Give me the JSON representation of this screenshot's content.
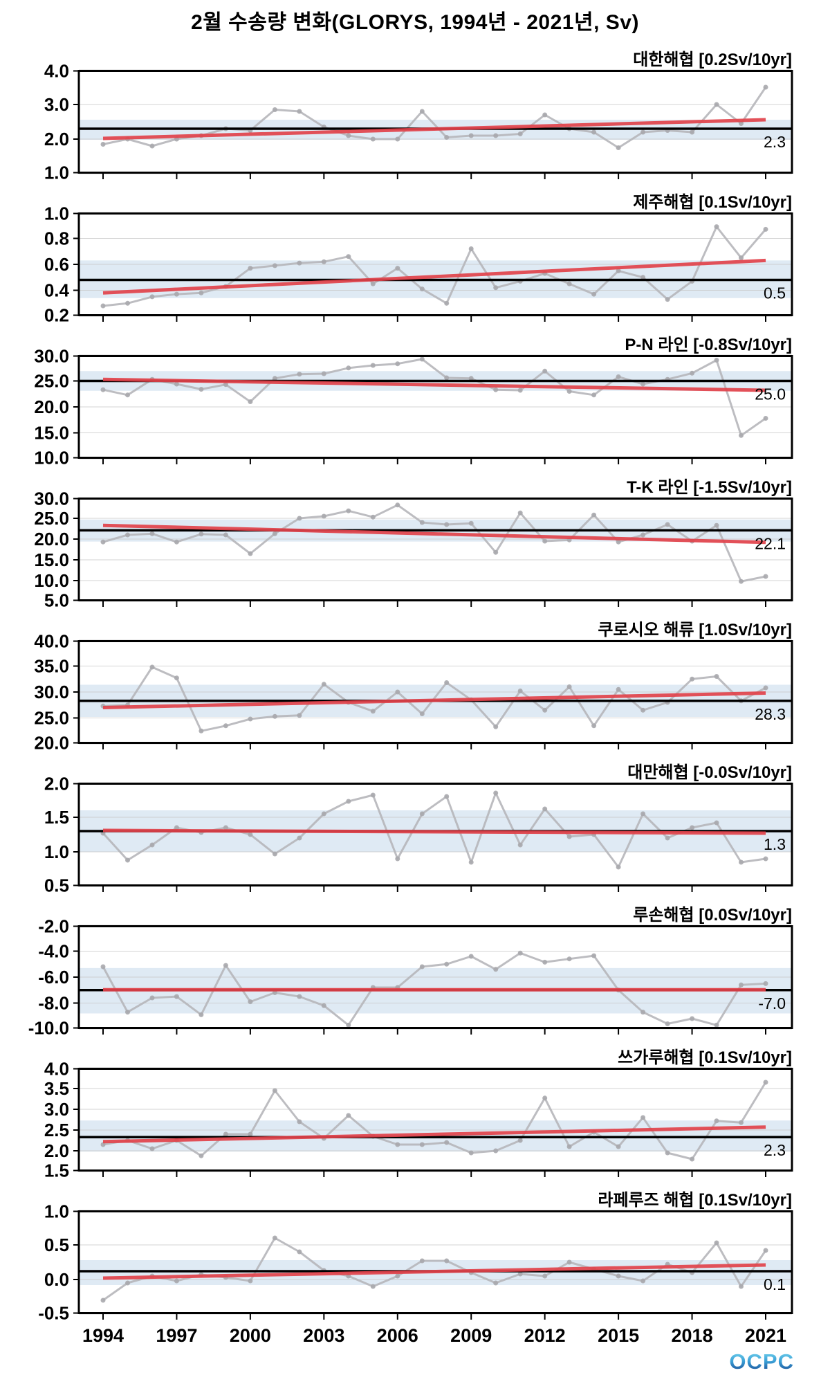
{
  "title": "2월 수송량 변화(GLORYS, 1994년 - 2021년, Sv)",
  "logo": {
    "text": "OCPC",
    "color_top": "#7edcf2",
    "color_bottom": "#123a86"
  },
  "colors": {
    "data_line": "#b6b6ba",
    "marker": "#a9a9ad",
    "trend": "#e2434b",
    "mean": "#000000",
    "band": "#d9e6f2",
    "grid": "#c9c9c9"
  },
  "years": [
    1994,
    1995,
    1996,
    1997,
    1998,
    1999,
    2000,
    2001,
    2002,
    2003,
    2004,
    2005,
    2006,
    2007,
    2008,
    2009,
    2010,
    2011,
    2012,
    2013,
    2014,
    2015,
    2016,
    2017,
    2018,
    2019,
    2020,
    2021
  ],
  "x_axis": {
    "tick_labels": [
      "1994",
      "1997",
      "2000",
      "2003",
      "2006",
      "2009",
      "2012",
      "2015",
      "2018",
      "2021"
    ],
    "tick_years": [
      1994,
      1997,
      2000,
      2003,
      2006,
      2009,
      2012,
      2015,
      2018,
      2021
    ]
  },
  "chart_data": [
    {
      "type": "line",
      "name": "korea-strait",
      "subtitle": "대한해협 [0.2Sv/10yr]",
      "trend_sv_per_10yr": 0.2,
      "mean": 2.3,
      "mean_label": "2.3",
      "ylim": [
        1.0,
        4.0
      ],
      "yticks": [
        4.0,
        3.0,
        2.0,
        1.0
      ],
      "ytick_labels": [
        "4.0",
        "3.0",
        "2.0",
        "1.0"
      ],
      "band": [
        1.98,
        2.56
      ],
      "trend_line": [
        2.02,
        2.56
      ],
      "values": [
        1.85,
        2.0,
        1.8,
        2.0,
        2.1,
        2.3,
        2.25,
        2.85,
        2.8,
        2.35,
        2.1,
        2.0,
        2.0,
        2.8,
        2.05,
        2.1,
        2.1,
        2.15,
        2.7,
        2.3,
        2.2,
        1.75,
        2.2,
        2.25,
        2.2,
        3.0,
        2.45,
        3.5
      ]
    },
    {
      "type": "line",
      "name": "jeju-strait",
      "subtitle": "제주해협 [0.1Sv/10yr]",
      "trend_sv_per_10yr": 0.1,
      "mean": 0.48,
      "mean_label": "0.5",
      "ylim": [
        0.2,
        1.0
      ],
      "yticks": [
        1.0,
        0.8,
        0.6,
        0.4,
        0.2
      ],
      "ytick_labels": [
        "1.0",
        "0.8",
        "0.6",
        "0.4",
        "0.2"
      ],
      "band": [
        0.34,
        0.63
      ],
      "trend_line": [
        0.38,
        0.63
      ],
      "values": [
        0.28,
        0.3,
        0.35,
        0.37,
        0.38,
        0.43,
        0.57,
        0.59,
        0.61,
        0.62,
        0.66,
        0.45,
        0.57,
        0.41,
        0.3,
        0.72,
        0.42,
        0.47,
        0.53,
        0.45,
        0.37,
        0.55,
        0.5,
        0.33,
        0.47,
        0.89,
        0.65,
        0.87
      ]
    },
    {
      "type": "line",
      "name": "pn-line",
      "subtitle": "P-N 라인 [-0.8Sv/10yr]",
      "trend_sv_per_10yr": -0.8,
      "mean": 25.0,
      "mean_label": "25.0",
      "ylim": [
        10.0,
        30.0
      ],
      "yticks": [
        30.0,
        25.0,
        20.0,
        15.0,
        10.0
      ],
      "ytick_labels": [
        "30.0",
        "25.0",
        "20.0",
        "15.0",
        "10.0"
      ],
      "band": [
        23.1,
        26.9
      ],
      "trend_line": [
        25.3,
        23.2
      ],
      "values": [
        23.3,
        22.3,
        25.3,
        24.4,
        23.4,
        24.3,
        21.0,
        25.5,
        26.3,
        26.4,
        27.5,
        28.0,
        28.3,
        29.2,
        25.6,
        25.5,
        23.3,
        23.2,
        26.9,
        23.0,
        22.3,
        25.8,
        24.4,
        25.3,
        26.5,
        29.0,
        14.5,
        17.8
      ]
    },
    {
      "type": "line",
      "name": "tk-line",
      "subtitle": "T-K 라인 [-1.5Sv/10yr]",
      "trend_sv_per_10yr": -1.5,
      "mean": 22.1,
      "mean_label": "22.1",
      "ylim": [
        5.0,
        30.0
      ],
      "yticks": [
        30.0,
        25.0,
        20.0,
        15.0,
        10.0,
        5.0
      ],
      "ytick_labels": [
        "30.0",
        "25.0",
        "20.0",
        "15.0",
        "10.0",
        "5.0"
      ],
      "band": [
        19.4,
        24.7
      ],
      "trend_line": [
        23.3,
        19.2
      ],
      "values": [
        19.3,
        21.0,
        21.3,
        19.3,
        21.2,
        21.0,
        16.5,
        21.3,
        25.0,
        25.5,
        26.8,
        25.3,
        28.2,
        24.0,
        23.5,
        23.8,
        16.8,
        26.3,
        19.5,
        19.8,
        25.8,
        19.3,
        21.0,
        23.5,
        19.5,
        23.3,
        9.8,
        11.0
      ]
    },
    {
      "type": "line",
      "name": "kuroshio-current",
      "subtitle": "쿠로시오 해류 [1.0Sv/10yr]",
      "trend_sv_per_10yr": 1.0,
      "mean": 28.3,
      "mean_label": "28.3",
      "ylim": [
        20.0,
        40.0
      ],
      "yticks": [
        40.0,
        35.0,
        30.0,
        25.0,
        20.0
      ],
      "ytick_labels": [
        "40.0",
        "35.0",
        "30.0",
        "25.0",
        "20.0"
      ],
      "band": [
        25.2,
        31.4
      ],
      "trend_line": [
        27.0,
        29.8
      ],
      "values": [
        27.3,
        27.5,
        34.8,
        32.7,
        22.5,
        23.5,
        24.8,
        25.3,
        25.5,
        31.5,
        28.0,
        26.3,
        30.0,
        25.8,
        31.8,
        28.5,
        23.3,
        30.2,
        26.5,
        31.0,
        23.5,
        30.5,
        26.5,
        28.0,
        32.5,
        33.0,
        28.3,
        30.8
      ]
    },
    {
      "type": "line",
      "name": "taiwan-strait",
      "subtitle": "대만해협 [-0.0Sv/10yr]",
      "trend_sv_per_10yr": -0.0,
      "mean": 1.3,
      "mean_label": "1.3",
      "ylim": [
        0.5,
        2.0
      ],
      "yticks": [
        2.0,
        1.5,
        1.0,
        0.5
      ],
      "ytick_labels": [
        "2.0",
        "1.5",
        "1.0",
        "0.5"
      ],
      "band": [
        1.0,
        1.6
      ],
      "trend_line": [
        1.31,
        1.27
      ],
      "values": [
        1.27,
        0.88,
        1.1,
        1.35,
        1.28,
        1.35,
        1.25,
        0.97,
        1.2,
        1.55,
        1.73,
        1.82,
        0.9,
        1.55,
        1.8,
        0.85,
        1.85,
        1.1,
        1.62,
        1.22,
        1.25,
        0.78,
        1.55,
        1.2,
        1.35,
        1.42,
        0.85,
        0.9
      ]
    },
    {
      "type": "line",
      "name": "luzon-strait",
      "subtitle": "루손해협 [0.0Sv/10yr]",
      "trend_sv_per_10yr": 0.0,
      "mean": -7.0,
      "mean_label": "-7.0",
      "ylim": [
        -10.0,
        -2.0
      ],
      "yticks": [
        -2.0,
        -4.0,
        -6.0,
        -8.0,
        -10.0
      ],
      "ytick_labels": [
        "-2.0",
        "-4.0",
        "-6.0",
        "-8.0",
        "-10.0"
      ],
      "band": [
        -8.8,
        -5.3
      ],
      "trend_line": [
        -6.97,
        -6.97
      ],
      "values": [
        -5.2,
        -8.7,
        -7.6,
        -7.5,
        -8.9,
        -5.1,
        -7.9,
        -7.2,
        -7.5,
        -8.2,
        -9.7,
        -6.8,
        -6.8,
        -5.2,
        -5.0,
        -4.4,
        -5.4,
        -4.15,
        -4.85,
        -4.6,
        -4.35,
        -7.0,
        -8.7,
        -9.6,
        -9.2,
        -9.7,
        -6.6,
        -6.5
      ]
    },
    {
      "type": "line",
      "name": "tsugaru-strait",
      "subtitle": "쓰가루해협 [0.1Sv/10yr]",
      "trend_sv_per_10yr": 0.1,
      "mean": 2.33,
      "mean_label": "2.3",
      "ylim": [
        1.5,
        4.0
      ],
      "yticks": [
        4.0,
        3.5,
        3.0,
        2.5,
        2.0,
        1.5
      ],
      "ytick_labels": [
        "4.0",
        "3.5",
        "3.0",
        "2.5",
        "2.0",
        "1.5"
      ],
      "band": [
        1.98,
        2.73
      ],
      "trend_line": [
        2.22,
        2.57
      ],
      "values": [
        2.15,
        2.25,
        2.05,
        2.25,
        1.88,
        2.4,
        2.4,
        3.45,
        2.7,
        2.3,
        2.85,
        2.35,
        2.15,
        2.15,
        2.2,
        1.95,
        2.0,
        2.25,
        3.27,
        2.1,
        2.45,
        2.1,
        2.8,
        1.95,
        1.8,
        2.72,
        2.68,
        3.65
      ]
    },
    {
      "type": "line",
      "name": "la-perouse-strait",
      "subtitle": "라페루즈 해협 [0.1Sv/10yr]",
      "trend_sv_per_10yr": 0.1,
      "mean": 0.12,
      "mean_label": "0.1",
      "ylim": [
        -0.5,
        1.0
      ],
      "yticks": [
        1.0,
        0.5,
        0.0,
        -0.5
      ],
      "ytick_labels": [
        "1.0",
        "0.5",
        "0.0",
        "-0.5"
      ],
      "band": [
        -0.08,
        0.28
      ],
      "trend_line": [
        0.02,
        0.21
      ],
      "values": [
        -0.3,
        -0.05,
        0.05,
        -0.02,
        0.07,
        0.03,
        -0.02,
        0.6,
        0.4,
        0.13,
        0.05,
        -0.1,
        0.05,
        0.27,
        0.27,
        0.1,
        -0.05,
        0.08,
        0.05,
        0.25,
        0.15,
        0.05,
        -0.02,
        0.22,
        0.1,
        0.53,
        -0.1,
        0.42
      ]
    }
  ]
}
